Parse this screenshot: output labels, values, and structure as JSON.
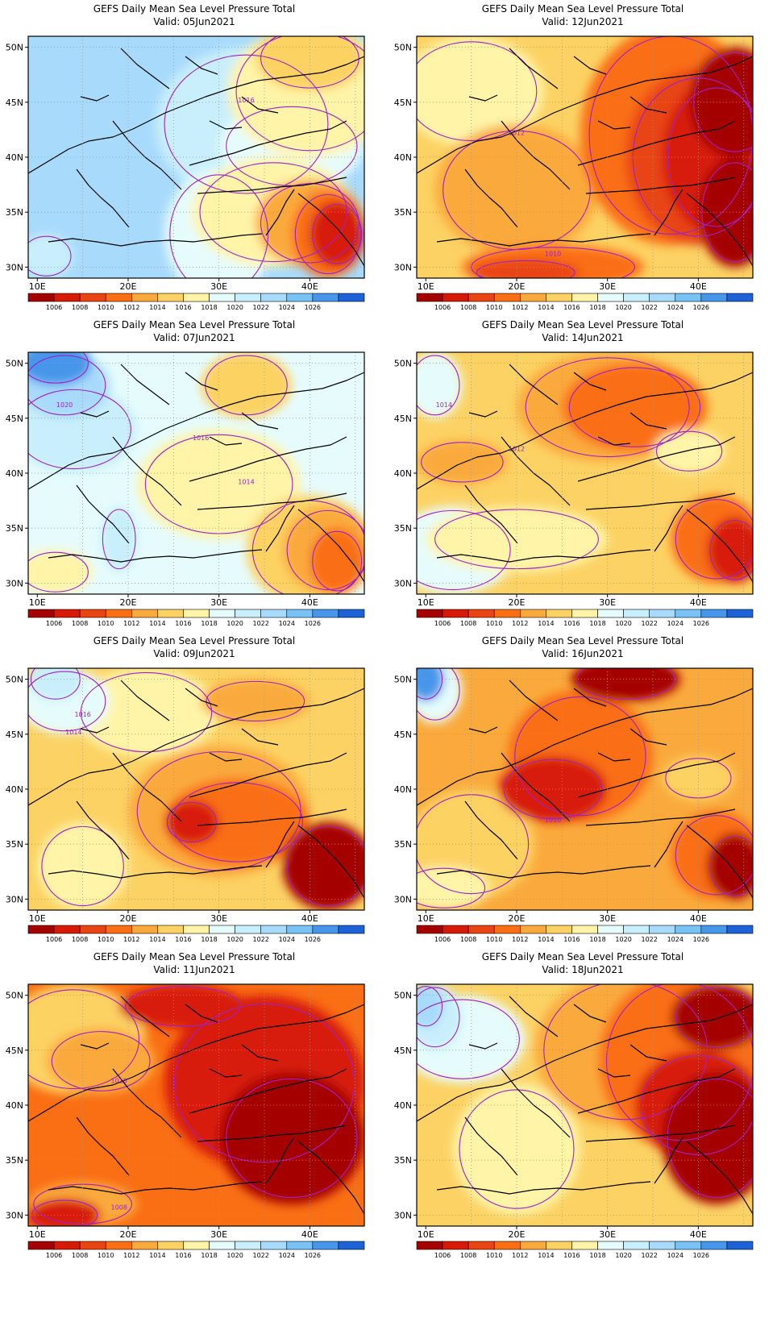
{
  "page_title": "GEFS Daily Mean Sea Level Pressure Total",
  "valid_prefix": "Valid:",
  "axes": {
    "lon_ticks": [
      "10E",
      "20E",
      "30E",
      "40E"
    ],
    "lat_ticks": [
      "50N",
      "45N",
      "40N",
      "35N",
      "30N"
    ],
    "lon_range": [
      9,
      46
    ],
    "lat_range": [
      29,
      51
    ],
    "gridlines": "dotted"
  },
  "colorbar": {
    "labels": [
      "1006",
      "1008",
      "1010",
      "1012",
      "1014",
      "1016",
      "1018",
      "1020",
      "1022",
      "1024",
      "1026"
    ],
    "colors": [
      "#a50000",
      "#d71a08",
      "#e84512",
      "#fa6e14",
      "#faaa3c",
      "#fcd264",
      "#fff4a8",
      "#e6fcfc",
      "#c9effc",
      "#a8dafc",
      "#78c2f5",
      "#4696ea",
      "#1e62d8"
    ]
  },
  "contour_color": "#a020c8",
  "panels": [
    {
      "id": "p1",
      "column": "left",
      "row": 1,
      "valid": "05Jun2021",
      "bg": "#a8dafc",
      "blobs": [
        {
          "c": "#c9effc",
          "lon": 33,
          "lat": 43,
          "rx": 10,
          "ry": 7
        },
        {
          "c": "#e6fcfc",
          "lon": 38,
          "lat": 41,
          "rx": 8,
          "ry": 4
        },
        {
          "c": "#fff4a8",
          "lon": 40,
          "lat": 46,
          "rx": 9,
          "ry": 6
        },
        {
          "c": "#fcd264",
          "lon": 40,
          "lat": 49,
          "rx": 6,
          "ry": 3
        },
        {
          "c": "#e6fcfc",
          "lon": 30,
          "lat": 33,
          "rx": 6,
          "ry": 6
        },
        {
          "c": "#fff4a8",
          "lon": 36,
          "lat": 35,
          "rx": 9,
          "ry": 5
        },
        {
          "c": "#faaa3c",
          "lon": 40,
          "lat": 34,
          "rx": 6,
          "ry": 4
        },
        {
          "c": "#fa6e14",
          "lon": 42,
          "lat": 33,
          "rx": 4,
          "ry": 4
        },
        {
          "c": "#d71a08",
          "lon": 43,
          "lat": 33,
          "rx": 3,
          "ry": 3
        },
        {
          "c": "#c9effc",
          "lon": 11,
          "lat": 31,
          "rx": 3,
          "ry": 2
        }
      ],
      "labels": [
        {
          "text": "1016",
          "lon": 33,
          "lat": 45
        }
      ]
    },
    {
      "id": "p2",
      "column": "right",
      "row": 1,
      "valid": "12Jun2021",
      "bg": "#fcd264",
      "blobs": [
        {
          "c": "#fff4a8",
          "lon": 15,
          "lat": 46,
          "rx": 8,
          "ry": 5
        },
        {
          "c": "#faaa3c",
          "lon": 20,
          "lat": 37,
          "rx": 9,
          "ry": 6
        },
        {
          "c": "#fa6e14",
          "lon": 37,
          "lat": 42,
          "rx": 10,
          "ry": 10
        },
        {
          "c": "#e84512",
          "lon": 40,
          "lat": 40,
          "rx": 8,
          "ry": 8
        },
        {
          "c": "#d71a08",
          "lon": 42,
          "lat": 40,
          "rx": 6,
          "ry": 7
        },
        {
          "c": "#a50000",
          "lon": 44,
          "lat": 45,
          "rx": 5,
          "ry": 5
        },
        {
          "c": "#a50000",
          "lon": 44,
          "lat": 35,
          "rx": 4,
          "ry": 5
        },
        {
          "c": "#fa6e14",
          "lon": 24,
          "lat": 30,
          "rx": 10,
          "ry": 2
        },
        {
          "c": "#e84512",
          "lon": 21,
          "lat": 29.5,
          "rx": 6,
          "ry": 1.2
        }
      ],
      "labels": [
        {
          "text": "1012",
          "lon": 20,
          "lat": 42
        },
        {
          "text": "1010",
          "lon": 24,
          "lat": 31
        }
      ]
    },
    {
      "id": "p3",
      "column": "left",
      "row": 2,
      "valid": "07Jun2021",
      "bg": "#e6fcfc",
      "blobs": [
        {
          "c": "#c9effc",
          "lon": 14,
          "lat": 44,
          "rx": 7,
          "ry": 4
        },
        {
          "c": "#a8dafc",
          "lon": 13,
          "lat": 48,
          "rx": 5,
          "ry": 3
        },
        {
          "c": "#4696ea",
          "lon": 12,
          "lat": 50,
          "rx": 4,
          "ry": 2
        },
        {
          "c": "#c9effc",
          "lon": 19,
          "lat": 34,
          "rx": 2,
          "ry": 3
        },
        {
          "c": "#fff4a8",
          "lon": 30,
          "lat": 39,
          "rx": 9,
          "ry": 5
        },
        {
          "c": "#fcd264",
          "lon": 40,
          "lat": 33,
          "rx": 7,
          "ry": 5
        },
        {
          "c": "#faaa3c",
          "lon": 42,
          "lat": 33,
          "rx": 5,
          "ry": 4
        },
        {
          "c": "#fa6e14",
          "lon": 43,
          "lat": 32,
          "rx": 3,
          "ry": 3
        },
        {
          "c": "#fcd264",
          "lon": 33,
          "lat": 48,
          "rx": 5,
          "ry": 3
        },
        {
          "c": "#fff4a8",
          "lon": 12,
          "lat": 31,
          "rx": 4,
          "ry": 2
        }
      ],
      "labels": [
        {
          "text": "1020",
          "lon": 13,
          "lat": 46
        },
        {
          "text": "1016",
          "lon": 28,
          "lat": 43
        },
        {
          "text": "1014",
          "lon": 33,
          "lat": 39
        }
      ]
    },
    {
      "id": "p4",
      "column": "right",
      "row": 2,
      "valid": "14Jun2021",
      "bg": "#fcd264",
      "blobs": [
        {
          "c": "#e6fcfc",
          "lon": 13,
          "lat": 33,
          "rx": 7,
          "ry": 4
        },
        {
          "c": "#e6fcfc",
          "lon": 11,
          "lat": 48,
          "rx": 3,
          "ry": 3
        },
        {
          "c": "#fff4a8",
          "lon": 20,
          "lat": 34,
          "rx": 10,
          "ry": 3
        },
        {
          "c": "#faaa3c",
          "lon": 30,
          "lat": 46,
          "rx": 10,
          "ry": 5
        },
        {
          "c": "#fa6e14",
          "lon": 33,
          "lat": 46,
          "rx": 8,
          "ry": 4
        },
        {
          "c": "#faaa3c",
          "lon": 14,
          "lat": 41,
          "rx": 5,
          "ry": 2
        },
        {
          "c": "#fa6e14",
          "lon": 42,
          "lat": 34,
          "rx": 5,
          "ry": 4
        },
        {
          "c": "#d71a08",
          "lon": 44,
          "lat": 33,
          "rx": 3,
          "ry": 3
        },
        {
          "c": "#fff4a8",
          "lon": 39,
          "lat": 42,
          "rx": 4,
          "ry": 2
        }
      ],
      "labels": [
        {
          "text": "1014",
          "lon": 12,
          "lat": 46
        },
        {
          "text": "1012",
          "lon": 20,
          "lat": 42
        }
      ]
    },
    {
      "id": "p5",
      "column": "left",
      "row": 3,
      "valid": "09Jun2021",
      "bg": "#fcd264",
      "blobs": [
        {
          "c": "#fff4a8",
          "lon": 22,
          "lat": 47,
          "rx": 8,
          "ry": 4
        },
        {
          "c": "#e6fcfc",
          "lon": 13,
          "lat": 48,
          "rx": 5,
          "ry": 3
        },
        {
          "c": "#c9effc",
          "lon": 12,
          "lat": 50,
          "rx": 3,
          "ry": 2
        },
        {
          "c": "#faaa3c",
          "lon": 30,
          "lat": 38,
          "rx": 10,
          "ry": 6
        },
        {
          "c": "#fa6e14",
          "lon": 32,
          "lat": 37,
          "rx": 8,
          "ry": 4
        },
        {
          "c": "#d71a08",
          "lon": 27,
          "lat": 37,
          "rx": 3,
          "ry": 2
        },
        {
          "c": "#a50000",
          "lon": 42,
          "lat": 33,
          "rx": 5,
          "ry": 4
        },
        {
          "c": "#fff4a8",
          "lon": 15,
          "lat": 33,
          "rx": 5,
          "ry": 4
        },
        {
          "c": "#faaa3c",
          "lon": 34,
          "lat": 48,
          "rx": 6,
          "ry": 2
        }
      ],
      "labels": [
        {
          "text": "1016",
          "lon": 15,
          "lat": 46.6
        },
        {
          "text": "1014",
          "lon": 14,
          "lat": 45
        }
      ]
    },
    {
      "id": "p6",
      "column": "right",
      "row": 3,
      "valid": "16Jun2021",
      "bg": "#faaa3c",
      "blobs": [
        {
          "c": "#fcd264",
          "lon": 15,
          "lat": 35,
          "rx": 7,
          "ry": 5
        },
        {
          "c": "#fff4a8",
          "lon": 12,
          "lat": 31,
          "rx": 5,
          "ry": 2
        },
        {
          "c": "#e6fcfc",
          "lon": 11,
          "lat": 49,
          "rx": 3,
          "ry": 3
        },
        {
          "c": "#4696ea",
          "lon": 10,
          "lat": 50,
          "rx": 2,
          "ry": 2
        },
        {
          "c": "#fa6e14",
          "lon": 27,
          "lat": 43,
          "rx": 8,
          "ry": 6
        },
        {
          "c": "#d71a08",
          "lon": 24,
          "lat": 40,
          "rx": 6,
          "ry": 3
        },
        {
          "c": "#a50000",
          "lon": 32,
          "lat": 50,
          "rx": 6,
          "ry": 2
        },
        {
          "c": "#fa6e14",
          "lon": 42,
          "lat": 34,
          "rx": 5,
          "ry": 4
        },
        {
          "c": "#a50000",
          "lon": 44,
          "lat": 33,
          "rx": 3,
          "ry": 3
        },
        {
          "c": "#fcd264",
          "lon": 40,
          "lat": 41,
          "rx": 4,
          "ry": 2
        }
      ],
      "labels": [
        {
          "text": "1010",
          "lon": 24,
          "lat": 37
        }
      ]
    },
    {
      "id": "p7",
      "column": "left",
      "row": 4,
      "valid": "11Jun2021",
      "bg": "#fa6e14",
      "blobs": [
        {
          "c": "#fcd264",
          "lon": 14,
          "lat": 46,
          "rx": 8,
          "ry": 5
        },
        {
          "c": "#faaa3c",
          "lon": 17,
          "lat": 44,
          "rx": 6,
          "ry": 3
        },
        {
          "c": "#d71a08",
          "lon": 35,
          "lat": 42,
          "rx": 11,
          "ry": 8
        },
        {
          "c": "#a50000",
          "lon": 38,
          "lat": 37,
          "rx": 8,
          "ry": 6
        },
        {
          "c": "#d71a08",
          "lon": 26,
          "lat": 49,
          "rx": 7,
          "ry": 2
        },
        {
          "c": "#faaa3c",
          "lon": 15,
          "lat": 31,
          "rx": 6,
          "ry": 2
        },
        {
          "c": "#d71a08",
          "lon": 13,
          "lat": 30,
          "rx": 4,
          "ry": 1.5
        }
      ],
      "labels": [
        {
          "text": "1010",
          "lon": 19,
          "lat": 42
        },
        {
          "text": "1008",
          "lon": 19,
          "lat": 30.5
        }
      ]
    },
    {
      "id": "p8",
      "column": "right",
      "row": 4,
      "valid": "18Jun2021",
      "bg": "#fcd264",
      "blobs": [
        {
          "c": "#fff4a8",
          "lon": 20,
          "lat": 36,
          "rx": 7,
          "ry": 6
        },
        {
          "c": "#e6fcfc",
          "lon": 14,
          "lat": 46,
          "rx": 7,
          "ry": 4
        },
        {
          "c": "#c9effc",
          "lon": 11,
          "lat": 48,
          "rx": 3,
          "ry": 3
        },
        {
          "c": "#a8dafc",
          "lon": 10,
          "lat": 49,
          "rx": 2,
          "ry": 2
        },
        {
          "c": "#faaa3c",
          "lon": 32,
          "lat": 45,
          "rx": 10,
          "ry": 7
        },
        {
          "c": "#fa6e14",
          "lon": 38,
          "lat": 44,
          "rx": 9,
          "ry": 8
        },
        {
          "c": "#d71a08",
          "lon": 40,
          "lat": 40,
          "rx": 7,
          "ry": 5
        },
        {
          "c": "#a50000",
          "lon": 42,
          "lat": 37,
          "rx": 6,
          "ry": 6
        },
        {
          "c": "#a50000",
          "lon": 42,
          "lat": 48,
          "rx": 5,
          "ry": 3
        }
      ],
      "labels": []
    }
  ]
}
